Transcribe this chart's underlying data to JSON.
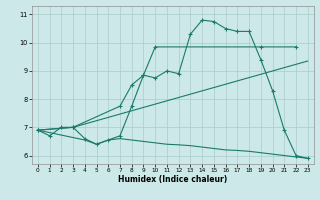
{
  "background_color": "#cde8e8",
  "grid_color": "#aacccc",
  "line_color": "#1a7a6a",
  "xlabel": "Humidex (Indice chaleur)",
  "xlim": [
    -0.5,
    23.5
  ],
  "ylim": [
    5.7,
    11.3
  ],
  "yticks": [
    6,
    7,
    8,
    9,
    10,
    11
  ],
  "xticks": [
    0,
    1,
    2,
    3,
    4,
    5,
    6,
    7,
    8,
    9,
    10,
    11,
    12,
    13,
    14,
    15,
    16,
    17,
    18,
    19,
    20,
    21,
    22,
    23
  ],
  "series1_x": [
    0,
    1,
    2,
    3,
    4,
    5,
    6,
    7,
    8,
    9,
    10,
    11,
    12,
    13,
    14,
    15,
    16,
    17,
    18,
    19,
    20,
    21,
    22,
    23
  ],
  "series1_y": [
    6.9,
    6.7,
    7.0,
    7.0,
    6.6,
    6.4,
    6.55,
    6.7,
    7.75,
    8.85,
    8.75,
    9.0,
    8.9,
    10.3,
    10.8,
    10.75,
    10.5,
    10.4,
    10.4,
    9.4,
    8.3,
    6.9,
    6.0,
    5.9
  ],
  "series2_x": [
    0,
    3,
    7,
    8,
    9,
    10,
    19,
    22
  ],
  "series2_y": [
    6.9,
    7.0,
    7.75,
    8.5,
    8.85,
    9.85,
    9.85,
    9.85
  ],
  "series3_x": [
    0,
    3,
    23
  ],
  "series3_y": [
    6.9,
    7.0,
    9.35
  ],
  "series4_x": [
    0,
    4,
    5,
    6,
    7,
    8,
    9,
    10,
    11,
    12,
    13,
    14,
    15,
    16,
    17,
    18,
    19,
    20,
    21,
    22,
    23
  ],
  "series4_y": [
    6.9,
    6.55,
    6.4,
    6.55,
    6.6,
    6.55,
    6.5,
    6.45,
    6.4,
    6.38,
    6.35,
    6.3,
    6.25,
    6.2,
    6.18,
    6.15,
    6.1,
    6.05,
    6.0,
    5.95,
    5.9
  ]
}
